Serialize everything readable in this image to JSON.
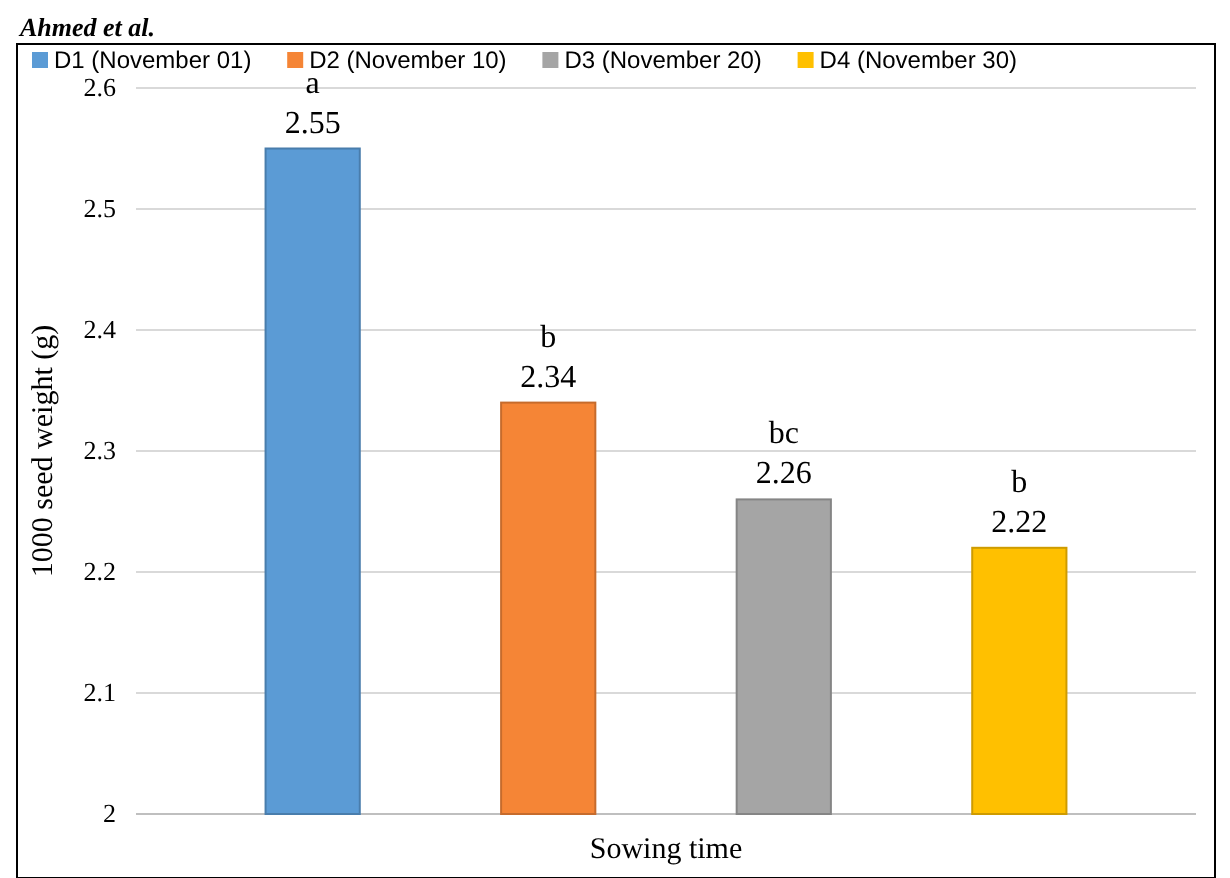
{
  "chart_data": {
    "type": "bar",
    "categories": [
      null,
      null,
      null,
      null
    ],
    "series": [
      {
        "name": "D1 (November 01)",
        "color": "#5b9bd5",
        "values": [
          2.55,
          null,
          null,
          null
        ]
      },
      {
        "name": "D2 (November 10)",
        "color": "#f58536",
        "values": [
          null,
          2.34,
          null,
          null
        ]
      },
      {
        "name": "D3 (November 20)",
        "color": "#a5a5a5",
        "values": [
          null,
          null,
          2.26,
          null
        ]
      },
      {
        "name": "D4 (November 30)",
        "color": "#ffc000",
        "values": [
          null,
          null,
          null,
          2.22
        ]
      }
    ],
    "ylim": [
      2,
      2.6
    ],
    "yticks": [
      2,
      2.1,
      2.2,
      2.3,
      2.4,
      2.5,
      2.6
    ],
    "grid": "y",
    "legend": "top",
    "data_labels": true,
    "xlabel": "Sowing time",
    "ylabel": "1000 seed weight (g)",
    "annotations": [
      "Ahmed et al.",
      {
        "text": "a",
        "y": 2.55
      },
      {
        "text": "b",
        "y": 2.34
      },
      {
        "text": "bc",
        "y": 2.26
      },
      {
        "text": "b",
        "y": 2.22
      }
    ]
  }
}
